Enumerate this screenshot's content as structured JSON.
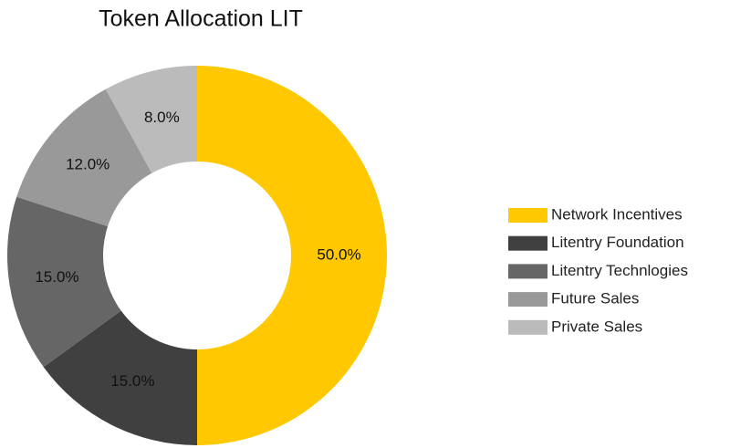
{
  "chart_data": {
    "type": "pie",
    "title": "Token Allocation LIT",
    "categories": [
      "Network Incentives",
      "Litentry Foundation",
      "Litentry Technlogies",
      "Future Sales",
      "Private Sales"
    ],
    "values": [
      50,
      15,
      15,
      12,
      8
    ],
    "value_labels": [
      "50.0%",
      "15.0%",
      "15.0%",
      "12.0%",
      "8.0%"
    ],
    "colors": [
      "#ffc800",
      "#404040",
      "#666666",
      "#999999",
      "#bbbbbb"
    ],
    "donut": true,
    "legend": "right"
  }
}
